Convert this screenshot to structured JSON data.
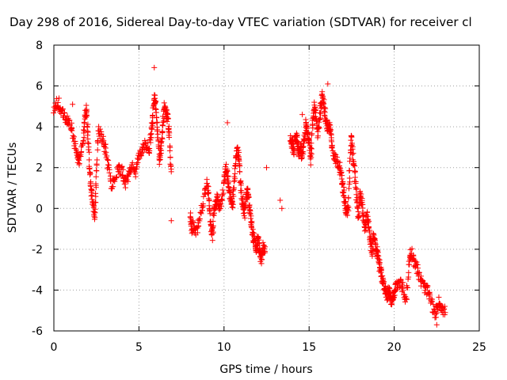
{
  "chart_data": {
    "type": "scatter",
    "title": "Day 298 of 2016, Sidereal Day-to-day VTEC variation (SDTVAR) for receiver cl",
    "xlabel": "GPS time / hours",
    "ylabel": "SDTVAR / TECUs",
    "xlim": [
      0,
      25
    ],
    "ylim": [
      -6,
      8
    ],
    "xticks": [
      0,
      5,
      10,
      15,
      20,
      25
    ],
    "yticks": [
      -6,
      -4,
      -2,
      0,
      2,
      4,
      6,
      8
    ],
    "grid": true,
    "marker": "+",
    "color": "#ff0000",
    "series": [
      {
        "name": "SDTVAR",
        "trace": [
          [
            0.0,
            4.8
          ],
          [
            0.2,
            5.2
          ],
          [
            0.4,
            4.9
          ],
          [
            0.6,
            4.6
          ],
          [
            0.8,
            4.3
          ],
          [
            1.0,
            4.0
          ],
          [
            1.2,
            3.2
          ],
          [
            1.4,
            2.6
          ],
          [
            1.5,
            2.3
          ],
          [
            1.7,
            3.0
          ],
          [
            1.8,
            4.2
          ],
          [
            1.9,
            4.9
          ],
          [
            2.0,
            3.6
          ],
          [
            2.1,
            2.0
          ],
          [
            2.2,
            0.8
          ],
          [
            2.3,
            0.3
          ],
          [
            2.4,
            -0.4
          ],
          [
            2.5,
            1.5
          ],
          [
            2.6,
            3.8
          ],
          [
            2.8,
            3.5
          ],
          [
            3.0,
            3.0
          ],
          [
            3.2,
            2.0
          ],
          [
            3.4,
            1.1
          ],
          [
            3.6,
            1.5
          ],
          [
            3.8,
            2.0
          ],
          [
            4.0,
            1.8
          ],
          [
            4.2,
            1.2
          ],
          [
            4.4,
            1.6
          ],
          [
            4.6,
            2.1
          ],
          [
            4.8,
            1.8
          ],
          [
            5.0,
            2.5
          ],
          [
            5.2,
            2.9
          ],
          [
            5.4,
            3.2
          ],
          [
            5.6,
            2.8
          ],
          [
            5.7,
            3.6
          ],
          [
            5.8,
            4.4
          ],
          [
            5.9,
            5.4
          ],
          [
            6.0,
            5.0
          ],
          [
            6.1,
            3.5
          ],
          [
            6.2,
            2.3
          ],
          [
            6.3,
            3.0
          ],
          [
            6.4,
            4.1
          ],
          [
            6.5,
            4.9
          ],
          [
            6.6,
            4.7
          ],
          [
            6.7,
            4.3
          ],
          [
            6.8,
            3.4
          ],
          [
            6.9,
            1.8
          ],
          [
            8.0,
            -0.4
          ],
          [
            8.1,
            -1.0
          ],
          [
            8.2,
            -0.8
          ],
          [
            8.4,
            -1.2
          ],
          [
            8.6,
            -0.3
          ],
          [
            8.8,
            0.4
          ],
          [
            9.0,
            1.3
          ],
          [
            9.1,
            0.6
          ],
          [
            9.2,
            -0.6
          ],
          [
            9.3,
            -1.3
          ],
          [
            9.4,
            -0.4
          ],
          [
            9.5,
            0.2
          ],
          [
            9.6,
            0.5
          ],
          [
            9.7,
            0.0
          ],
          [
            9.8,
            0.3
          ],
          [
            10.0,
            1.2
          ],
          [
            10.1,
            2.0
          ],
          [
            10.2,
            1.5
          ],
          [
            10.3,
            0.8
          ],
          [
            10.4,
            0.6
          ],
          [
            10.5,
            0.2
          ],
          [
            10.6,
            1.3
          ],
          [
            10.7,
            2.6
          ],
          [
            10.8,
            2.9
          ],
          [
            10.9,
            2.2
          ],
          [
            11.0,
            1.0
          ],
          [
            11.1,
            0.3
          ],
          [
            11.2,
            -0.3
          ],
          [
            11.3,
            0.6
          ],
          [
            11.4,
            0.8
          ],
          [
            11.5,
            0.0
          ],
          [
            11.6,
            -0.6
          ],
          [
            11.7,
            -1.3
          ],
          [
            11.8,
            -1.7
          ],
          [
            11.9,
            -2.0
          ],
          [
            12.0,
            -1.4
          ],
          [
            12.1,
            -2.2
          ],
          [
            12.2,
            -2.5
          ],
          [
            12.3,
            -1.9
          ],
          [
            12.4,
            -2.1
          ],
          [
            13.9,
            3.5
          ],
          [
            14.0,
            3.2
          ],
          [
            14.1,
            2.8
          ],
          [
            14.2,
            3.6
          ],
          [
            14.3,
            3.3
          ],
          [
            14.4,
            2.7
          ],
          [
            14.5,
            3.0
          ],
          [
            14.6,
            2.5
          ],
          [
            14.7,
            3.2
          ],
          [
            14.8,
            4.1
          ],
          [
            14.9,
            3.8
          ],
          [
            15.0,
            3.3
          ],
          [
            15.1,
            2.3
          ],
          [
            15.2,
            4.3
          ],
          [
            15.3,
            5.0
          ],
          [
            15.4,
            4.6
          ],
          [
            15.5,
            3.6
          ],
          [
            15.6,
            4.1
          ],
          [
            15.7,
            5.1
          ],
          [
            15.8,
            5.5
          ],
          [
            15.9,
            4.8
          ],
          [
            16.0,
            4.3
          ],
          [
            16.1,
            3.9
          ],
          [
            16.2,
            4.1
          ],
          [
            16.3,
            3.5
          ],
          [
            16.4,
            2.8
          ],
          [
            16.6,
            2.3
          ],
          [
            16.8,
            2.1
          ],
          [
            16.9,
            1.5
          ],
          [
            17.0,
            1.0
          ],
          [
            17.1,
            0.3
          ],
          [
            17.2,
            -0.2
          ],
          [
            17.3,
            0.0
          ],
          [
            17.4,
            2.2
          ],
          [
            17.5,
            3.6
          ],
          [
            17.6,
            2.4
          ],
          [
            17.7,
            1.5
          ],
          [
            17.8,
            0.5
          ],
          [
            17.9,
            -0.3
          ],
          [
            18.0,
            0.8
          ],
          [
            18.1,
            0.3
          ],
          [
            18.2,
            -0.5
          ],
          [
            18.3,
            -1.0
          ],
          [
            18.4,
            -0.3
          ],
          [
            18.5,
            -0.8
          ],
          [
            18.6,
            -1.6
          ],
          [
            18.7,
            -2.2
          ],
          [
            18.8,
            -1.2
          ],
          [
            18.9,
            -1.8
          ],
          [
            19.0,
            -2.1
          ],
          [
            19.1,
            -2.6
          ],
          [
            19.2,
            -3.0
          ],
          [
            19.3,
            -3.4
          ],
          [
            19.4,
            -3.8
          ],
          [
            19.5,
            -4.1
          ],
          [
            19.6,
            -4.3
          ],
          [
            19.7,
            -4.0
          ],
          [
            19.8,
            -4.4
          ],
          [
            19.9,
            -4.6
          ],
          [
            20.0,
            -4.2
          ],
          [
            20.1,
            -3.8
          ],
          [
            20.3,
            -3.6
          ],
          [
            20.5,
            -3.9
          ],
          [
            20.7,
            -4.5
          ],
          [
            20.9,
            -2.5
          ],
          [
            21.0,
            -2.1
          ],
          [
            21.2,
            -2.6
          ],
          [
            21.4,
            -3.1
          ],
          [
            21.6,
            -3.6
          ],
          [
            21.8,
            -3.9
          ],
          [
            22.0,
            -4.1
          ],
          [
            22.2,
            -4.6
          ],
          [
            22.4,
            -5.3
          ],
          [
            22.6,
            -4.6
          ],
          [
            22.8,
            -4.8
          ],
          [
            23.0,
            -5.1
          ]
        ],
        "scatter": [
          [
            5.9,
            6.9
          ],
          [
            6.9,
            -0.6
          ],
          [
            12.5,
            2.0
          ],
          [
            16.1,
            6.1
          ],
          [
            13.4,
            0.0
          ],
          [
            13.3,
            0.4
          ],
          [
            12.2,
            -2.7
          ],
          [
            22.5,
            -5.7
          ],
          [
            10.2,
            4.2
          ],
          [
            14.6,
            4.6
          ],
          [
            1.1,
            5.1
          ],
          [
            0.3,
            5.4
          ]
        ]
      }
    ]
  }
}
